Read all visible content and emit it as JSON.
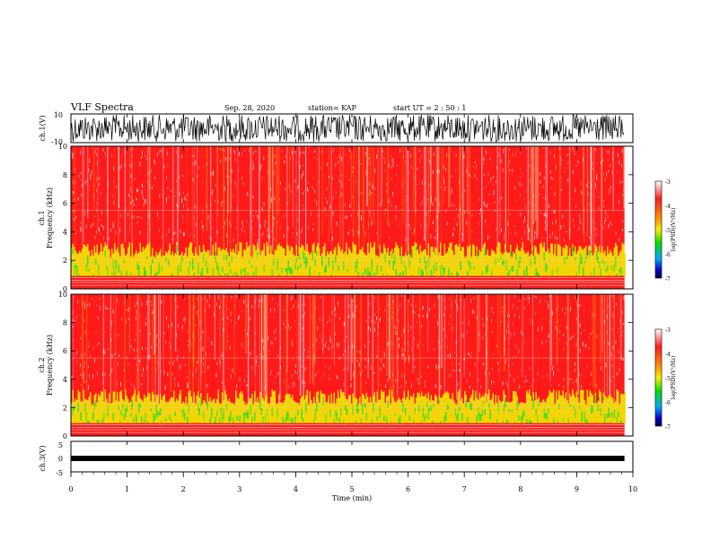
{
  "header": {
    "title": "VLF Spectra",
    "date": "Sep. 28, 2020",
    "station": "station= KAP",
    "start_ut": "start  UT =  2 : 50 : 1"
  },
  "chart_data": [
    {
      "type": "line",
      "panel": "ch1-waveform",
      "ylabel": "ch.1(V)",
      "ylim": [
        -10,
        10
      ],
      "yticks": [
        "10",
        "-10"
      ],
      "xlim": [
        0,
        10
      ]
    },
    {
      "type": "heatmap",
      "panel": "ch1-spectrogram",
      "ylabel_top": "ch.1",
      "ylabel": "Frequency (kHz)",
      "ylim": [
        0,
        10
      ],
      "yticks": [
        "0",
        "2",
        "4",
        "6",
        "8",
        "10"
      ],
      "colorbar": {
        "label": "log(PSD)(V²/Hz)",
        "ticks": [
          "-3",
          "-4",
          "-5",
          "-6",
          "-7"
        ],
        "range": [
          -7,
          -3
        ]
      }
    },
    {
      "type": "heatmap",
      "panel": "ch2-spectrogram",
      "ylabel_top": "ch.2",
      "ylabel": "Frequency (kHz)",
      "ylim": [
        0,
        10
      ],
      "yticks": [
        "0",
        "2",
        "4",
        "6",
        "8",
        "10"
      ],
      "colorbar": {
        "label": "log(PSD)(V²/Hz)",
        "ticks": [
          "-3",
          "-4",
          "-5",
          "-6",
          "-7"
        ],
        "range": [
          -7,
          -3
        ]
      }
    },
    {
      "type": "line",
      "panel": "ch3-waveform",
      "ylabel": "ch.3(V)",
      "ylim": [
        -5,
        5
      ],
      "yticks": [
        "5",
        "0",
        "-5"
      ]
    },
    {
      "type": "axis",
      "panel": "time-axis",
      "xlabel": "Time (min)",
      "xlim": [
        0,
        10
      ],
      "xticks": [
        "0",
        "1",
        "2",
        "3",
        "4",
        "5",
        "6",
        "7",
        "8",
        "9",
        "10"
      ],
      "data_end": 9.85
    }
  ],
  "colors": {
    "red": "#ff1a1a",
    "yellow": "#f0e000",
    "green": "#22dd22",
    "black": "#000000"
  }
}
